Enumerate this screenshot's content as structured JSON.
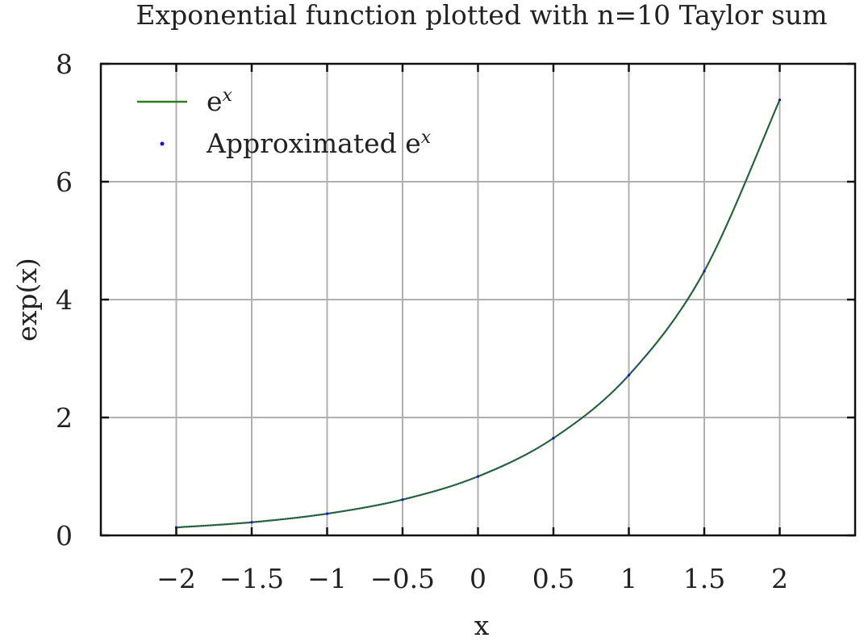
{
  "chart_data": {
    "type": "line",
    "title": "Exponential function plotted with n=10 Taylor sum",
    "xlabel": "x",
    "ylabel": "exp(x)",
    "xlim": [
      -2.5,
      2.5
    ],
    "ylim": [
      0,
      8
    ],
    "grid": true,
    "legend_position": "top-left",
    "x_ticks": [
      -2,
      -1.5,
      -1,
      -0.5,
      0,
      0.5,
      1,
      1.5,
      2
    ],
    "x_tick_labels": [
      "−2",
      "−1.5",
      "−1",
      "−0.5",
      "0",
      "0.5",
      "1",
      "1.5",
      "2"
    ],
    "y_ticks": [
      0,
      2,
      4,
      6,
      8
    ],
    "y_tick_labels": [
      "0",
      "2",
      "4",
      "6",
      "8"
    ],
    "x": [
      -2,
      -1.5,
      -1,
      -0.5,
      0,
      0.5,
      1,
      1.5,
      2
    ],
    "series": [
      {
        "name": "e",
        "name_superscript": "x",
        "style": "line",
        "color": "#2e7d1e",
        "values": [
          0.135,
          0.223,
          0.368,
          0.607,
          1.0,
          1.649,
          2.718,
          4.482,
          7.389
        ]
      },
      {
        "name": "Approximated e",
        "name_superscript": "x",
        "style": "dots",
        "color": "#1414d6",
        "values": [
          0.135,
          0.223,
          0.368,
          0.607,
          1.0,
          1.649,
          2.718,
          4.482,
          7.389
        ]
      }
    ]
  }
}
